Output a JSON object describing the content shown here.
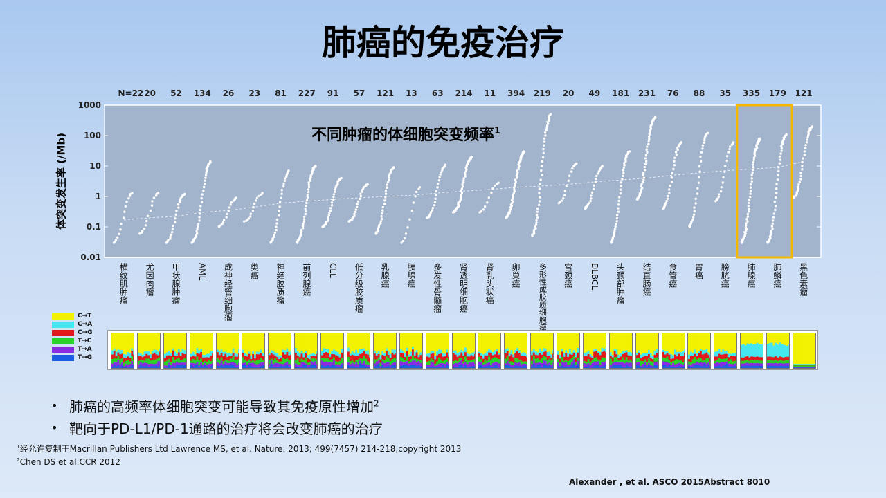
{
  "title": "肺癌的免疫治疗",
  "chart_data": {
    "type": "scatter",
    "title": "不同肿瘤的体细胞突变频率",
    "title_sup": "1",
    "ylabel": "体突变发生率 (/Mb)",
    "ylim": [
      0.01,
      1000
    ],
    "y_scale": "log",
    "yticks": [
      "1000",
      "100",
      "10",
      "1",
      "0.1",
      "0.01"
    ],
    "highlight_color": "#f5b800",
    "highlighted_categories": [
      "肺腺癌",
      "肺鳞癌"
    ],
    "categories": [
      {
        "name": "横纹肌肿瘤",
        "n": "N=22",
        "lo": 0.03,
        "hi": 1.3,
        "med": 0.17
      },
      {
        "name": "尤因肉瘤",
        "n": "20",
        "lo": 0.06,
        "hi": 1.3,
        "med": 0.2
      },
      {
        "name": "甲状腺肿瘤",
        "n": "52",
        "lo": 0.03,
        "hi": 1.2,
        "med": 0.22
      },
      {
        "name": "AML",
        "n": "134",
        "lo": 0.03,
        "hi": 14,
        "med": 0.3
      },
      {
        "name": "成神经管细胞瘤",
        "n": "26",
        "lo": 0.1,
        "hi": 0.9,
        "med": 0.35
      },
      {
        "name": "类癌",
        "n": "23",
        "lo": 0.15,
        "hi": 1.3,
        "med": 0.45
      },
      {
        "name": "神经胶质瘤",
        "n": "81",
        "lo": 0.03,
        "hi": 7,
        "med": 0.6
      },
      {
        "name": "前列腺癌",
        "n": "227",
        "lo": 0.03,
        "hi": 10,
        "med": 0.7
      },
      {
        "name": "CLL",
        "n": "91",
        "lo": 0.1,
        "hi": 4,
        "med": 0.8
      },
      {
        "name": "低分级胶质瘤",
        "n": "57",
        "lo": 0.15,
        "hi": 2.5,
        "med": 0.9
      },
      {
        "name": "乳腺癌",
        "n": "121",
        "lo": 0.06,
        "hi": 9,
        "med": 1.0
      },
      {
        "name": "胰腺癌",
        "n": "13",
        "lo": 0.03,
        "hi": 2.0,
        "med": 1.1
      },
      {
        "name": "多发性骨髓瘤",
        "n": "63",
        "lo": 0.2,
        "hi": 11,
        "med": 1.3
      },
      {
        "name": "肾透明细胞癌",
        "n": "214",
        "lo": 0.3,
        "hi": 20,
        "med": 1.5
      },
      {
        "name": "肾乳头状癌",
        "n": "11",
        "lo": 0.3,
        "hi": 2.8,
        "med": 1.7
      },
      {
        "name": "卵巢癌",
        "n": "394",
        "lo": 0.2,
        "hi": 30,
        "med": 2.0
      },
      {
        "name": "多形性成胶质细胞瘤",
        "n": "219",
        "lo": 0.05,
        "hi": 500,
        "med": 2.2
      },
      {
        "name": "宫颈癌",
        "n": "20",
        "lo": 0.6,
        "hi": 12,
        "med": 2.5
      },
      {
        "name": "DLBCL",
        "n": "49",
        "lo": 0.4,
        "hi": 10,
        "med": 3
      },
      {
        "name": "头颈部肿瘤",
        "n": "181",
        "lo": 0.03,
        "hi": 30,
        "med": 3.5
      },
      {
        "name": "结直肠癌",
        "n": "231",
        "lo": 0.8,
        "hi": 400,
        "med": 4
      },
      {
        "name": "食管癌",
        "n": "76",
        "lo": 0.4,
        "hi": 60,
        "med": 5
      },
      {
        "name": "胃癌",
        "n": "88",
        "lo": 0.1,
        "hi": 120,
        "med": 6
      },
      {
        "name": "膀胱癌",
        "n": "35",
        "lo": 0.7,
        "hi": 60,
        "med": 7
      },
      {
        "name": "肺腺癌",
        "n": "335",
        "lo": 0.03,
        "hi": 80,
        "med": 8
      },
      {
        "name": "肺鳞癌",
        "n": "179",
        "lo": 0.03,
        "hi": 110,
        "med": 9
      },
      {
        "name": "黑色素瘤",
        "n": "121",
        "lo": 0.9,
        "hi": 200,
        "med": 14
      }
    ]
  },
  "legend": [
    {
      "label": "C→T",
      "color": "#f2f200"
    },
    {
      "label": "C→A",
      "color": "#45e6f0"
    },
    {
      "label": "C→G",
      "color": "#e01b1b"
    },
    {
      "label": "T→C",
      "color": "#28d128"
    },
    {
      "label": "T→A",
      "color": "#8a2be2"
    },
    {
      "label": "T→G",
      "color": "#1a5fe0"
    }
  ],
  "bullets": [
    {
      "text": "肺癌的高频率体细胞突变可能导致其免疫原性增加",
      "sup": "2"
    },
    {
      "text": "靶向于PD-L1/PD-1通路的治疗将会改变肺癌的治疗",
      "sup": ""
    }
  ],
  "footnotes": [
    {
      "sup": "1",
      "text": "经允许复制于Macrillan Publishers Ltd Lawrence MS, et al.  Nature: 2013; 499(7457) 214-218,copyright  2013"
    },
    {
      "sup": "2",
      "text": "Chen DS et al.CCR 2012"
    }
  ],
  "citation": "Alexander , et al. ASCO 2015Abstract 8010"
}
